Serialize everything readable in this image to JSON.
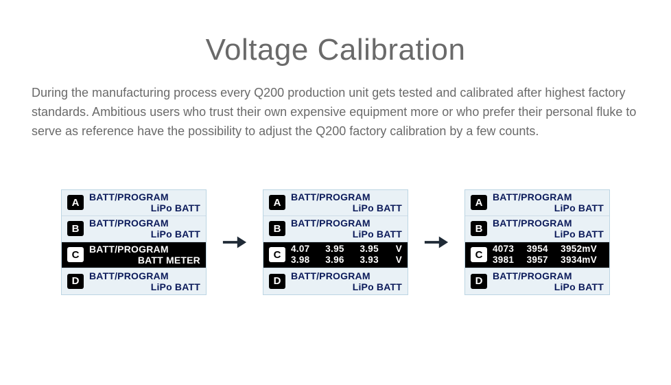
{
  "heading": "Voltage Calibration",
  "description": "During the manufacturing process every Q200 production unit gets tested and calibrated after highest factory standards. Ambitious users who trust their own expensive equipment more or who prefer their personal fluke to serve as reference have the possibility to adjust the Q200 factory calibration by a few counts.",
  "colors": {
    "text_gray": "#6a6a6a",
    "screen_bg": "#e9f1f6",
    "screen_border": "#bcd5e3",
    "row_text": "#0b1a5a",
    "selected_bg": "#000000",
    "selected_fg": "#ffffff",
    "badge_bg": "#000000",
    "badge_fg": "#ffffff",
    "arrow": "#1f2a36"
  },
  "screens": [
    {
      "selected_index": 2,
      "rows": [
        {
          "badge": "A",
          "line1": "BATT/PROGRAM",
          "line2": "LiPo BATT"
        },
        {
          "badge": "B",
          "line1": "BATT/PROGRAM",
          "line2": "LiPo BATT"
        },
        {
          "badge": "C",
          "line1": "BATT/PROGRAM",
          "line2": "BATT METER"
        },
        {
          "badge": "D",
          "line1": "BATT/PROGRAM",
          "line2": "LiPo BATT"
        }
      ]
    },
    {
      "selected_index": 2,
      "rows": [
        {
          "badge": "A",
          "line1": "BATT/PROGRAM",
          "line2": "LiPo BATT"
        },
        {
          "badge": "B",
          "line1": "BATT/PROGRAM",
          "line2": "LiPo BATT"
        },
        {
          "badge": "C",
          "meter": {
            "r1": [
              "4.07",
              "3.95",
              "3.95"
            ],
            "r2": [
              "3.98",
              "3.96",
              "3.93"
            ],
            "unit": "V"
          }
        },
        {
          "badge": "D",
          "line1": "BATT/PROGRAM",
          "line2": "LiPo BATT"
        }
      ]
    },
    {
      "selected_index": 2,
      "rows": [
        {
          "badge": "A",
          "line1": "BATT/PROGRAM",
          "line2": "LiPo BATT"
        },
        {
          "badge": "B",
          "line1": "BATT/PROGRAM",
          "line2": "LiPo BATT"
        },
        {
          "badge": "C",
          "meter": {
            "r1": [
              "4073",
              "3954",
              "3952"
            ],
            "r2": [
              "3981",
              "3957",
              "3934"
            ],
            "unit": "mV",
            "unit_on_last": true
          }
        },
        {
          "badge": "D",
          "line1": "BATT/PROGRAM",
          "line2": "LiPo BATT"
        }
      ]
    }
  ]
}
